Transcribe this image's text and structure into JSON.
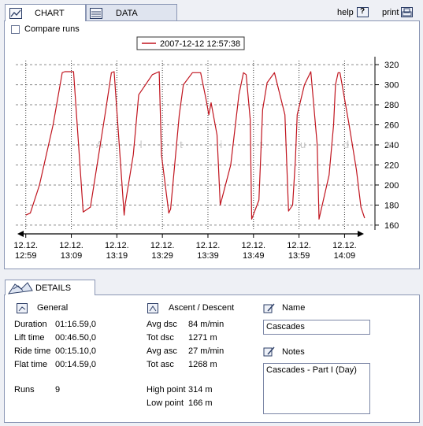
{
  "tabs": {
    "chart": "CHART",
    "data": "DATA"
  },
  "top_links": {
    "help": "help",
    "print": "print"
  },
  "compare_runs": "Compare runs",
  "chart_data": {
    "type": "line",
    "legend_label": "2007-12-12 12:57:38",
    "watermark": "A l t i t u d e",
    "y_ticks": [
      160,
      180,
      200,
      220,
      240,
      260,
      280,
      300,
      320
    ],
    "ylim": [
      156,
      324
    ],
    "x_ticks": [
      {
        "top": "12.12.",
        "bottom": "12:59"
      },
      {
        "top": "12.12.",
        "bottom": "13:09"
      },
      {
        "top": "12.12.",
        "bottom": "13:19"
      },
      {
        "top": "12.12.",
        "bottom": "13:29"
      },
      {
        "top": "12.12.",
        "bottom": "13:39"
      },
      {
        "top": "12.12.",
        "bottom": "13:49"
      },
      {
        "top": "12.12.",
        "bottom": "13:59"
      },
      {
        "top": "12.12.",
        "bottom": "14:09"
      }
    ],
    "x_tick_minutes": [
      0,
      10,
      20,
      30,
      40,
      50,
      60,
      70
    ],
    "xlim": [
      -2.2,
      76.5
    ],
    "line_color": "#c0141e",
    "series": [
      {
        "x": [
          0,
          1,
          3,
          6,
          8,
          8.6,
          10.5,
          11.3,
          12.6,
          14.2,
          17.4,
          18.8,
          19.4,
          21.6,
          21.8,
          23.6,
          24.8,
          27.8,
          29.3,
          29.8,
          31.4,
          31.8,
          33.7,
          34.6,
          36.6,
          38.4,
          39.6,
          40.2,
          40.7,
          42,
          42.7,
          45,
          46.8,
          47.8,
          48.4,
          49.3,
          49.6,
          51.2,
          52,
          53,
          54.6,
          56.9,
          57.7,
          58.6,
          59.2,
          59.6,
          61.2,
          62.6,
          64,
          64.4,
          66.6,
          67.6,
          68,
          68.6,
          69,
          71,
          72.6,
          73.6,
          74.4
        ],
        "y": [
          170,
          172,
          200,
          260,
          312,
          313,
          313,
          260,
          173,
          178,
          270,
          312,
          313,
          170,
          180,
          230,
          290,
          310,
          313,
          230,
          172,
          176,
          270,
          300,
          312,
          312,
          285,
          270,
          282,
          250,
          180,
          220,
          290,
          312,
          310,
          265,
          166,
          185,
          275,
          302,
          312,
          270,
          174,
          180,
          225,
          270,
          300,
          313,
          240,
          166,
          210,
          260,
          300,
          312,
          312,
          260,
          215,
          178,
          167
        ]
      }
    ]
  },
  "details": {
    "tab_label": "DETAILS",
    "general": {
      "title": "General",
      "rows": [
        [
          "Duration",
          "01:16.59,0"
        ],
        [
          "Lift time",
          "00:46.50,0"
        ],
        [
          "Ride time",
          "00:15.10,0"
        ],
        [
          "Flat time",
          "00:14.59,0"
        ]
      ],
      "runs_label": "Runs",
      "runs_value": "9"
    },
    "ascent": {
      "title": "Ascent / Descent",
      "rows": [
        [
          "Avg dsc",
          "84 m/min"
        ],
        [
          "Tot dsc",
          "1271 m"
        ],
        [
          "Avg asc",
          "27 m/min"
        ],
        [
          "Tot asc",
          "1268 m"
        ]
      ],
      "points": [
        [
          "High point",
          "314 m"
        ],
        [
          "Low point",
          "166 m"
        ]
      ]
    },
    "name": {
      "title": "Name",
      "value": "Cascades"
    },
    "notes": {
      "title": "Notes",
      "value": "Cascades - Part I (Day)"
    }
  }
}
